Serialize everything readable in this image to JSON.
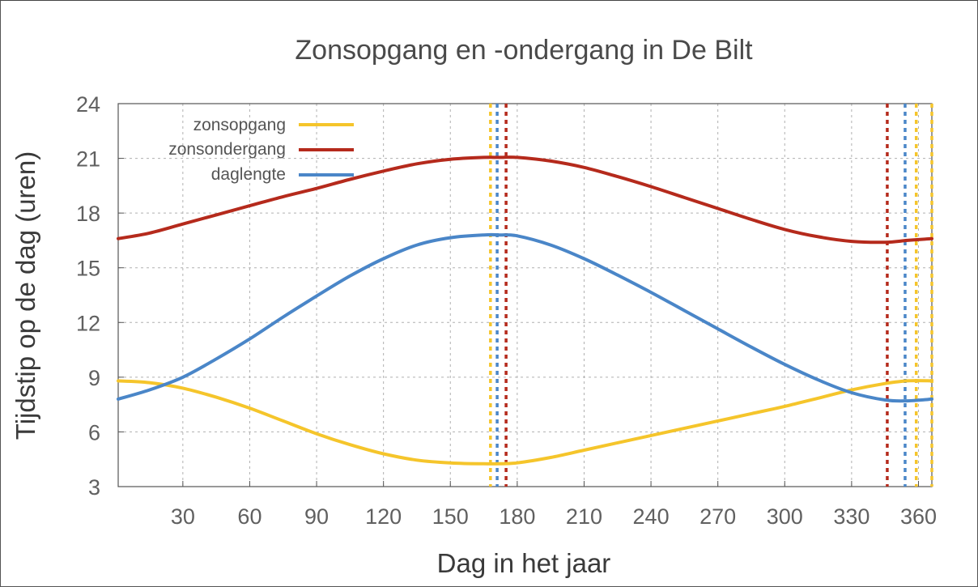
{
  "chart_data": {
    "type": "line",
    "title": "Zonsopgang en -ondergang in De Bilt",
    "xlabel": "Dag in het jaar",
    "ylabel": "Tijdstip op de dag (uren)",
    "xlim": [
      1,
      366
    ],
    "ylim": [
      3,
      24
    ],
    "xticks": [
      30,
      60,
      90,
      120,
      150,
      180,
      210,
      240,
      270,
      300,
      330,
      360
    ],
    "yticks": [
      3,
      6,
      9,
      12,
      15,
      18,
      21,
      24
    ],
    "grid": true,
    "legend_position": "top-left",
    "x": [
      1,
      15,
      30,
      45,
      60,
      75,
      90,
      105,
      120,
      135,
      150,
      165,
      172,
      180,
      195,
      210,
      225,
      240,
      255,
      270,
      285,
      300,
      315,
      330,
      345,
      355,
      366
    ],
    "series": [
      {
        "name": "zonsopgang",
        "color": "#f5c52b",
        "values": [
          8.8,
          8.7,
          8.4,
          7.9,
          7.3,
          6.6,
          5.9,
          5.3,
          4.8,
          4.45,
          4.3,
          4.25,
          4.25,
          4.3,
          4.6,
          5.0,
          5.4,
          5.8,
          6.2,
          6.6,
          7.0,
          7.4,
          7.85,
          8.3,
          8.65,
          8.8,
          8.8
        ]
      },
      {
        "name": "zonsondergang",
        "color": "#b52a1c",
        "values": [
          16.6,
          16.9,
          17.4,
          17.9,
          18.4,
          18.9,
          19.35,
          19.85,
          20.3,
          20.7,
          20.95,
          21.05,
          21.05,
          21.05,
          20.85,
          20.5,
          20.0,
          19.45,
          18.85,
          18.25,
          17.65,
          17.1,
          16.7,
          16.45,
          16.4,
          16.5,
          16.6
        ]
      },
      {
        "name": "daglengte",
        "color": "#4a86c8",
        "values": [
          7.8,
          8.3,
          9.0,
          10.0,
          11.1,
          12.3,
          13.45,
          14.55,
          15.5,
          16.25,
          16.65,
          16.8,
          16.8,
          16.75,
          16.25,
          15.5,
          14.6,
          13.65,
          12.65,
          11.65,
          10.65,
          9.7,
          8.85,
          8.15,
          7.75,
          7.7,
          7.8
        ]
      }
    ],
    "markers": [
      {
        "day": 168,
        "color": "#f5c52b"
      },
      {
        "day": 171,
        "color": "#4a86c8"
      },
      {
        "day": 175,
        "color": "#b52a1c"
      },
      {
        "day": 346,
        "color": "#b52a1c"
      },
      {
        "day": 354,
        "color": "#4a86c8"
      },
      {
        "day": 359,
        "color": "#f5c52b"
      },
      {
        "day": 366,
        "color": "#f5c52b"
      }
    ]
  }
}
